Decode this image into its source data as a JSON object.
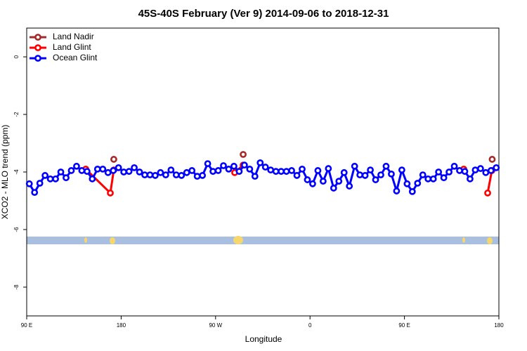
{
  "chart_data": {
    "type": "line",
    "title": "45S-40S February (Ver 9)   2014-09-06 to 2018-12-31",
    "xlabel": "Longitude",
    "ylabel": "XCO2 - MLO trend (ppm)",
    "xlim": [
      90,
      540
    ],
    "ylim": [
      -9,
      1
    ],
    "xticks": [
      {
        "value": 90,
        "label": "90 E"
      },
      180,
      {
        "value": 270,
        "label": "90 W"
      },
      {
        "value": 360,
        "label": "0"
      },
      {
        "value": 450,
        "label": "90 E"
      },
      {
        "value": 540,
        "label": "180"
      }
    ],
    "yticks": [
      0,
      -2,
      -4,
      -6,
      -8
    ],
    "legend": "top-left",
    "series": [
      {
        "name": "Land Nadir",
        "color": "#a52a2a",
        "x": [
          173,
          null,
          296.3,
          null,
          533.6
        ],
        "values": [
          -3.56,
          null,
          -3.39,
          null,
          -3.56
        ]
      },
      {
        "name": "Land Glint",
        "color": "#ff0000",
        "x": [
          146.3,
          169.7,
          173,
          null,
          288.2,
          296.3,
          null,
          506.5,
          null,
          529.3,
          533.3
        ],
        "values": [
          -3.9,
          -4.73,
          -3.93,
          null,
          -4.02,
          -3.76,
          null,
          -3.9,
          null,
          -4.73,
          -3.95
        ]
      },
      {
        "name": "Ocean Glint",
        "color": "#0000ff",
        "x": [
          92.5,
          97.5,
          102.5,
          107.5,
          112.5,
          117.5,
          122.5,
          127.5,
          132.5,
          137.5,
          142.5,
          147.5,
          152.5,
          157.5,
          162.5,
          167.5,
          172.5,
          177.5,
          182.5,
          187.5,
          192.5,
          197.5,
          202.5,
          207.5,
          212.5,
          217.5,
          222.5,
          227.5,
          232.5,
          237.5,
          242.5,
          247.5,
          252.5,
          257.5,
          262.5,
          267.5,
          272.5,
          277.5,
          282.5,
          287.5,
          292.5,
          297.5,
          302.5,
          307.5,
          312.5,
          317.5,
          322.5,
          327.5,
          332.5,
          337.5,
          342.5,
          347.5,
          352.5,
          357.5,
          362.5,
          367.5,
          372.5,
          377.5,
          382.5,
          387.5,
          392.5,
          397.5,
          402.5,
          407.5,
          412.5,
          417.5,
          422.5,
          427.5,
          432.5,
          437.5,
          442.5,
          447.5,
          452.5,
          457.5,
          462.5,
          467.5,
          472.5,
          477.5,
          482.5,
          487.5,
          492.5,
          497.5,
          502.5,
          507.5,
          512.5,
          517.5,
          522.5,
          527.5,
          532.5,
          537.5
        ],
        "values": [
          -4.41,
          -4.71,
          -4.39,
          -4.12,
          -4.24,
          -4.24,
          -4.0,
          -4.2,
          -3.95,
          -3.8,
          -3.95,
          -3.98,
          -4.24,
          -3.9,
          -3.9,
          -4.02,
          -3.95,
          -3.85,
          -4.0,
          -3.98,
          -3.85,
          -4.0,
          -4.1,
          -4.1,
          -4.12,
          -4.02,
          -4.1,
          -3.93,
          -4.1,
          -4.12,
          -4.02,
          -3.95,
          -4.15,
          -4.12,
          -3.71,
          -3.98,
          -3.95,
          -3.78,
          -3.9,
          -3.8,
          -3.98,
          -3.76,
          -3.9,
          -4.15,
          -3.68,
          -3.83,
          -3.93,
          -3.98,
          -3.98,
          -3.98,
          -3.95,
          -4.12,
          -3.9,
          -4.27,
          -4.41,
          -3.95,
          -4.32,
          -3.88,
          -4.56,
          -4.32,
          -4.02,
          -4.49,
          -3.8,
          -4.1,
          -4.12,
          -3.93,
          -4.27,
          -4.1,
          -3.8,
          -4.07,
          -4.66,
          -3.93,
          -4.41,
          -4.68,
          -4.39,
          -4.1,
          -4.24,
          -4.24,
          -4.0,
          -4.2,
          -4.0,
          -3.8,
          -3.95,
          -3.98,
          -4.24,
          -3.93,
          -3.88,
          -4.02,
          -3.95,
          -3.85
        ]
      }
    ]
  }
}
